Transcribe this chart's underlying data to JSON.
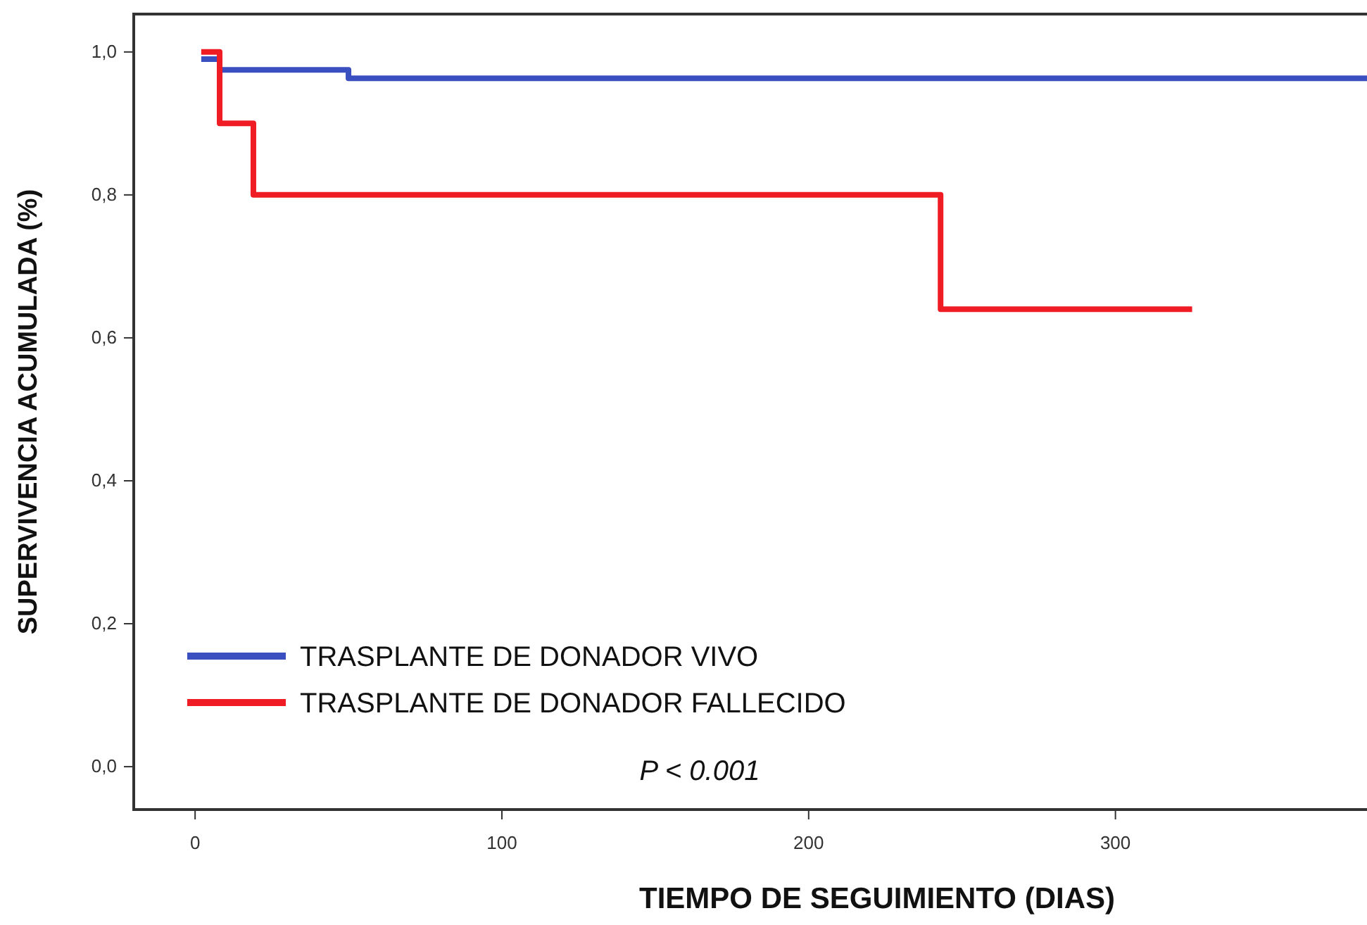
{
  "chart_data": {
    "type": "step",
    "xlabel": "TIEMPO DE SEGUIMIENTO (DIAS)",
    "ylabel": "SUPERVIVENCIA ACUMULADA (%)",
    "xlim": [
      -20,
      382
    ],
    "ylim": [
      -0.06,
      1.053
    ],
    "xticks": [
      0,
      100,
      200,
      300
    ],
    "yticks": [
      {
        "value": 0,
        "label": "0,0"
      },
      {
        "value": 0.2,
        "label": "0,2"
      },
      {
        "value": 0.4,
        "label": "0,4"
      },
      {
        "value": 0.6,
        "label": "0,6"
      },
      {
        "value": 0.8,
        "label": "0,8"
      },
      {
        "value": 1,
        "label": "1,0"
      }
    ],
    "series": [
      {
        "name": "TRASPLANTE DE DONADOR VIVO",
        "color": "#3a4fc0",
        "x": [
          2,
          8,
          50,
          382
        ],
        "values": [
          0.99,
          0.975,
          0.963,
          0.963
        ]
      },
      {
        "name": "TRASPLANTE DE DONADOR FALLECIDO",
        "color": "#f01c24",
        "x": [
          2,
          8,
          19,
          243,
          325
        ],
        "values": [
          1.0,
          0.9,
          0.8,
          0.64,
          0.64
        ]
      }
    ],
    "annotations": [
      "P < 0.001"
    ],
    "legend": "bottom left",
    "grid": false,
    "marker": "none",
    "line_style": "solid"
  }
}
